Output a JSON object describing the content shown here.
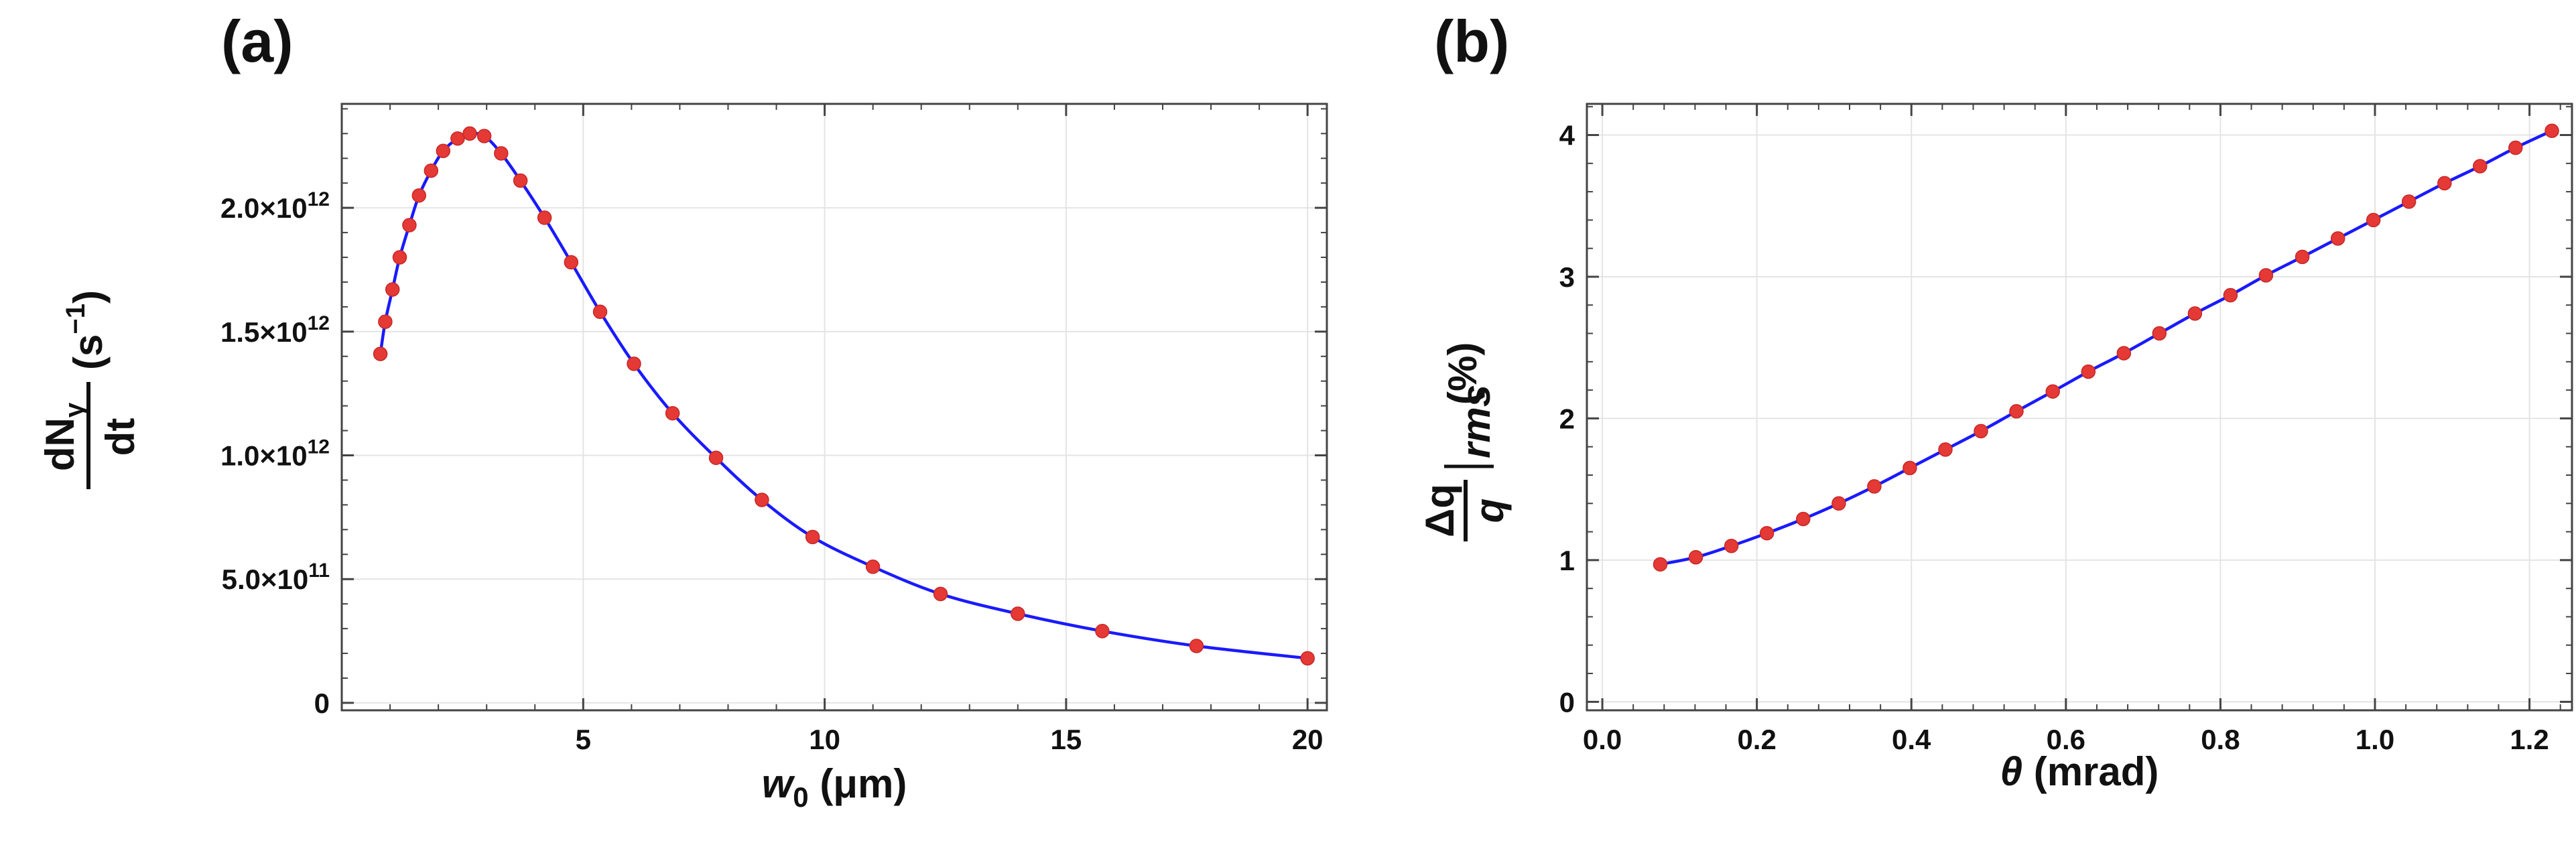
{
  "colors": {
    "line": "#1a1aff",
    "marker": "#e53935"
  },
  "chart_data": [
    {
      "panel_label": "(a)",
      "type": "line",
      "grid": true,
      "xlim": [
        0,
        20.4
      ],
      "ylim": [
        -30000000000.0,
        2420000000000.0
      ],
      "xticks": [
        {
          "v": 5,
          "label": "5"
        },
        {
          "v": 10,
          "label": "10"
        },
        {
          "v": 15,
          "label": "15"
        },
        {
          "v": 20,
          "label": "20"
        }
      ],
      "yticks": [
        {
          "v": 0,
          "label": "0"
        },
        {
          "v": 500000000000.0,
          "label": "5.0×10",
          "sup": "11"
        },
        {
          "v": 1000000000000.0,
          "label": "1.0×10",
          "sup": "12"
        },
        {
          "v": 1500000000000.0,
          "label": "1.5×10",
          "sup": "12"
        },
        {
          "v": 2000000000000.0,
          "label": "2.0×10",
          "sup": "12"
        }
      ],
      "xlabel": {
        "main": "w",
        "sub": "0",
        "rest": " (μm)"
      },
      "ylabel": {
        "num": "dN",
        "num_sub": "γ",
        "den": "dt",
        "unit": " (s",
        "unit_sup": "−1",
        "unit_end": ")"
      },
      "series": [
        {
          "x": [
            0.8,
            0.9,
            1.05,
            1.2,
            1.4,
            1.6,
            1.85,
            2.1,
            2.4,
            2.65,
            2.95,
            3.3,
            3.7,
            4.2,
            4.75,
            5.35,
            6.05,
            6.85,
            7.75,
            8.7,
            9.75,
            11.0,
            12.4,
            14.0,
            15.75,
            17.7,
            20.0
          ],
          "y": [
            1410000000000.0,
            1540000000000.0,
            1670000000000.0,
            1800000000000.0,
            1930000000000.0,
            2050000000000.0,
            2150000000000.0,
            2230000000000.0,
            2280000000000.0,
            2300000000000.0,
            2290000000000.0,
            2220000000000.0,
            2110000000000.0,
            1960000000000.0,
            1780000000000.0,
            1580000000000.0,
            1370000000000.0,
            1170000000000.0,
            990000000000.0,
            820000000000.0,
            670000000000.0,
            550000000000.0,
            440000000000.0,
            360000000000.0,
            290000000000.0,
            230000000000.0,
            180000000000.0
          ]
        }
      ]
    },
    {
      "panel_label": "(b)",
      "type": "line",
      "grid": true,
      "xlim": [
        -0.02,
        1.255
      ],
      "ylim": [
        -0.06,
        4.22
      ],
      "xticks": [
        {
          "v": 0.0,
          "label": "0.0"
        },
        {
          "v": 0.2,
          "label": "0.2"
        },
        {
          "v": 0.4,
          "label": "0.4"
        },
        {
          "v": 0.6,
          "label": "0.6"
        },
        {
          "v": 0.8,
          "label": "0.8"
        },
        {
          "v": 1.0,
          "label": "1.0"
        },
        {
          "v": 1.2,
          "label": "1.2"
        }
      ],
      "yticks": [
        {
          "v": 0,
          "label": "0"
        },
        {
          "v": 1,
          "label": "1"
        },
        {
          "v": 2,
          "label": "2"
        },
        {
          "v": 3,
          "label": "3"
        },
        {
          "v": 4,
          "label": "4"
        }
      ],
      "xlabel": {
        "main": "θ",
        "rest": " (mrad)"
      },
      "ylabel": {
        "num": "Δq",
        "den": "q",
        "bar_sub": "rms",
        "unit": " (%)"
      },
      "series": [
        {
          "x": [
            0.075,
            0.121,
            0.167,
            0.213,
            0.26,
            0.306,
            0.352,
            0.398,
            0.444,
            0.49,
            0.536,
            0.583,
            0.629,
            0.675,
            0.721,
            0.767,
            0.813,
            0.859,
            0.906,
            0.952,
            0.998,
            1.044,
            1.09,
            1.136,
            1.182,
            1.229
          ],
          "y": [
            0.97,
            1.02,
            1.1,
            1.19,
            1.29,
            1.4,
            1.52,
            1.65,
            1.78,
            1.91,
            2.05,
            2.19,
            2.33,
            2.46,
            2.6,
            2.74,
            2.87,
            3.01,
            3.14,
            3.27,
            3.4,
            3.53,
            3.66,
            3.78,
            3.91,
            4.03
          ]
        }
      ]
    }
  ]
}
